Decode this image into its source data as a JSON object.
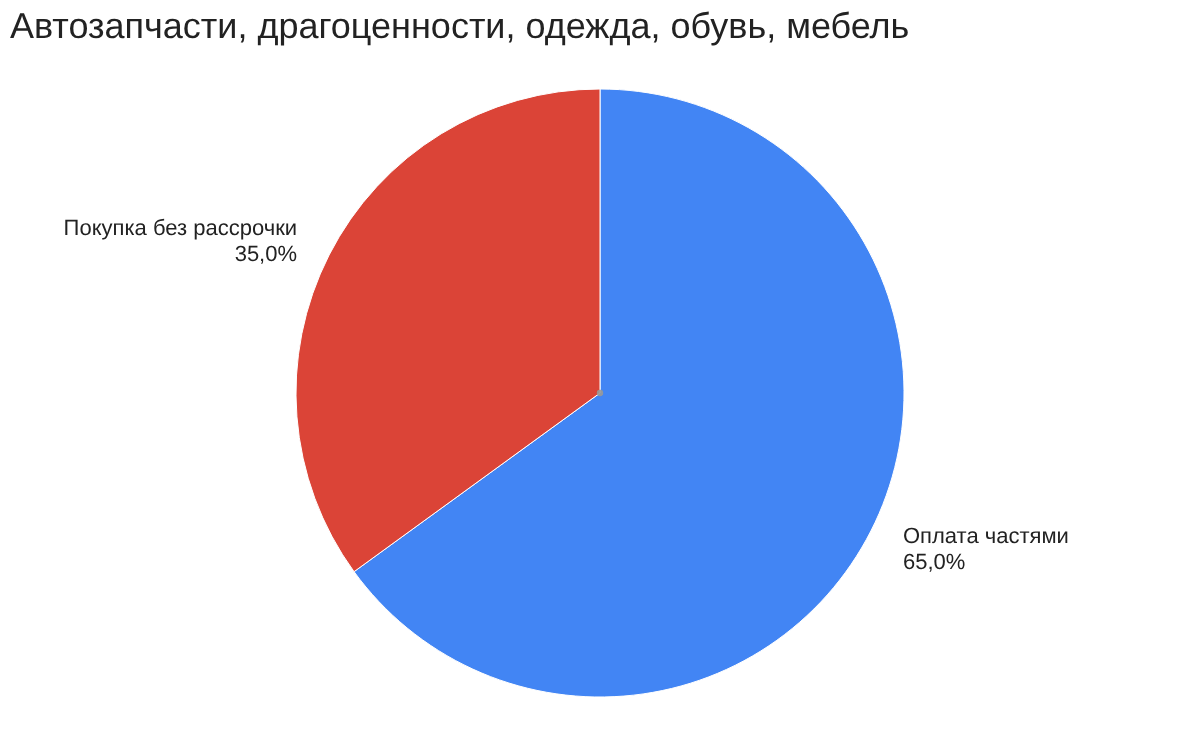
{
  "chart_data": {
    "type": "pie",
    "title": "Автозапчасти, драгоценности, одежда, обувь, мебель",
    "categories": [
      "Оплата частями",
      "Покупка без рассрочки"
    ],
    "values": [
      65,
      35
    ],
    "colors": [
      "#4285f4",
      "#db4437"
    ],
    "value_labels": [
      "65,0%",
      "35,0%"
    ],
    "legend": false
  }
}
